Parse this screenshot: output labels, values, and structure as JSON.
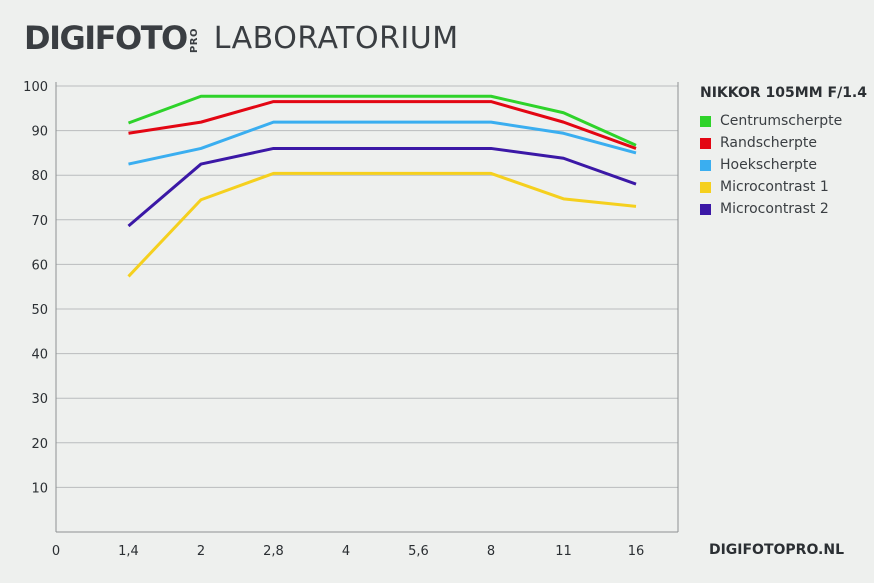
{
  "header": {
    "brand": "DIGIFOTO",
    "brand_suffix": "PRO",
    "subtitle": "LABORATORIUM"
  },
  "footer": {
    "site": "DIGIFOTOPRO.NL"
  },
  "chart_data": {
    "type": "line",
    "title": "NIKKOR 105MM F/1.4",
    "xlabel": "",
    "ylabel": "",
    "x_tick_labels": [
      "0",
      "1,4",
      "2",
      "2,8",
      "4",
      "5,6",
      "8",
      "11",
      "16"
    ],
    "y_ticks": [
      10,
      20,
      30,
      40,
      50,
      60,
      70,
      80,
      90,
      100
    ],
    "ylim": [
      0,
      100
    ],
    "grid": true,
    "legend_position": "right",
    "x": [
      "1,4",
      "2",
      "2,8",
      "4",
      "5,6",
      "8",
      "11",
      "16"
    ],
    "series": [
      {
        "name": "Centrumscherpte",
        "color": "#2ed32a",
        "values": [
          91.7,
          97.7,
          97.7,
          97.7,
          97.7,
          97.7,
          94.0,
          86.7
        ]
      },
      {
        "name": "Randscherpte",
        "color": "#e30613",
        "values": [
          89.4,
          91.9,
          96.5,
          96.5,
          96.5,
          96.5,
          91.9,
          86.0
        ]
      },
      {
        "name": "Hoekscherpte",
        "color": "#3aaef0",
        "values": [
          82.5,
          86.0,
          91.9,
          91.9,
          91.9,
          91.9,
          89.4,
          85.0
        ]
      },
      {
        "name": "Microcontrast 1",
        "color": "#f5d01e",
        "values": [
          57.3,
          74.5,
          80.4,
          80.4,
          80.4,
          80.4,
          74.7,
          73.0
        ]
      },
      {
        "name": "Microcontrast 2",
        "color": "#3b18a6",
        "values": [
          68.6,
          82.5,
          86.0,
          86.0,
          86.0,
          86.0,
          83.8,
          78.0
        ]
      }
    ]
  }
}
